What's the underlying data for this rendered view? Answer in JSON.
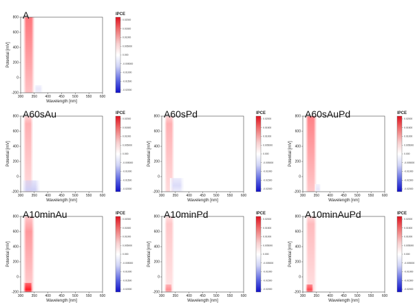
{
  "chart_data": [
    {
      "type": "heatmap",
      "title": "A",
      "xlabel": "Wavelength [nm]",
      "ylabel": "Potential [mV]",
      "xlim": [
        300,
        600
      ],
      "ylim": [
        -200,
        800
      ],
      "xticks": [
        "300",
        "350",
        "400",
        "450",
        "500",
        "550",
        "600"
      ],
      "yticks": [
        "-200",
        "0",
        "200",
        "400",
        "600",
        "800"
      ],
      "colorbar": {
        "title": "IPCE",
        "ticks": [
          "0.02000",
          "0.01500",
          "0.01000",
          "0.005000",
          "0.000",
          "-0.005000",
          "-0.01000",
          "-0.01500",
          "-0.02000"
        ],
        "range": [
          -0.02,
          0.02
        ]
      },
      "features": [
        {
          "label": "positive",
          "x_range": [
            310,
            350
          ],
          "y_range": [
            -200,
            800
          ],
          "peak_y": 800,
          "value": 0.012
        },
        {
          "label": "negative",
          "x_range": [
            350,
            380
          ],
          "y_range": [
            -200,
            -100
          ],
          "peak_y": -150,
          "value": -0.002
        }
      ]
    },
    {
      "type": "heatmap",
      "title": "A60sAu",
      "xlabel": "Wavelength [nm]",
      "ylabel": "Potential [mV]",
      "xlim": [
        300,
        600
      ],
      "ylim": [
        -200,
        800
      ],
      "xticks": [
        "300",
        "350",
        "400",
        "450",
        "500",
        "550",
        "600"
      ],
      "yticks": [
        "-200",
        "0",
        "200",
        "400",
        "600",
        "800"
      ],
      "colorbar": {
        "title": "IPCE",
        "ticks": [
          "0.02000",
          "0.01500",
          "0.01000",
          "0.005000",
          "0.000",
          "-0.005000",
          "-0.01000",
          "-0.01500",
          "-0.02000"
        ],
        "range": [
          -0.02,
          0.02
        ]
      },
      "features": [
        {
          "label": "positive",
          "x_range": [
            310,
            345
          ],
          "y_range": [
            -200,
            800
          ],
          "peak_y": 700,
          "value": 0.007
        },
        {
          "label": "negative",
          "x_range": [
            305,
            370
          ],
          "y_range": [
            -200,
            -50
          ],
          "peak_y": -180,
          "value": -0.004
        }
      ]
    },
    {
      "type": "heatmap",
      "title": "A60sPd",
      "xlabel": "Wavelength [nm]",
      "ylabel": "Potential [mV]",
      "xlim": [
        300,
        600
      ],
      "ylim": [
        -200,
        800
      ],
      "xticks": [
        "300",
        "350",
        "400",
        "450",
        "500",
        "550",
        "600"
      ],
      "yticks": [
        "-200",
        "0",
        "200",
        "400",
        "600",
        "800"
      ],
      "colorbar": {
        "title": "IPCE",
        "ticks": [
          "0.02000",
          "0.01500",
          "0.01000",
          "0.005000",
          "0.000",
          "-0.005000",
          "-0.01000",
          "-0.01500",
          "-0.02000"
        ],
        "range": [
          -0.02,
          0.02
        ]
      },
      "features": [
        {
          "label": "positive",
          "x_range": [
            310,
            345
          ],
          "y_range": [
            -200,
            800
          ],
          "peak_y": 700,
          "value": 0.007
        },
        {
          "label": "negative",
          "x_range": [
            330,
            380
          ],
          "y_range": [
            -200,
            -20
          ],
          "peak_y": -120,
          "value": -0.003
        }
      ]
    },
    {
      "type": "heatmap",
      "title": "A60sAuPd",
      "xlabel": "Wavelength [nm]",
      "ylabel": "Potential [mV]",
      "xlim": [
        300,
        600
      ],
      "ylim": [
        -200,
        800
      ],
      "xticks": [
        "300",
        "350",
        "400",
        "450",
        "500",
        "550",
        "600"
      ],
      "yticks": [
        "-200",
        "0",
        "200",
        "400",
        "600",
        "800"
      ],
      "colorbar": {
        "title": "IPCE",
        "ticks": [
          "0.02000",
          "0.01500",
          "0.01000",
          "0.005000",
          "0.000",
          "-0.005000",
          "-0.01000",
          "-0.01500",
          "-0.02000"
        ],
        "range": [
          -0.02,
          0.02
        ]
      },
      "features": [
        {
          "label": "positive",
          "x_range": [
            310,
            350
          ],
          "y_range": [
            -200,
            800
          ],
          "peak_y": 800,
          "value": 0.011
        },
        {
          "label": "negative",
          "x_range": [
            345,
            365
          ],
          "y_range": [
            -200,
            -100
          ],
          "peak_y": -170,
          "value": -0.002
        }
      ]
    },
    {
      "type": "heatmap",
      "title": "A10minAu",
      "xlabel": "Wavelength [nm]",
      "ylabel": "Potential [mV]",
      "xlim": [
        300,
        600
      ],
      "ylim": [
        -200,
        800
      ],
      "xticks": [
        "300",
        "350",
        "400",
        "450",
        "500",
        "550",
        "600"
      ],
      "yticks": [
        "-200",
        "0",
        "200",
        "400",
        "600",
        "800"
      ],
      "colorbar": {
        "title": "IPCE",
        "ticks": [
          "0.02000",
          "0.01500",
          "0.01000",
          "0.005000",
          "0.000",
          "-0.005000",
          "-0.01000",
          "-0.01500",
          "-0.02000"
        ],
        "range": [
          -0.02,
          0.02
        ]
      },
      "features": [
        {
          "label": "positive",
          "x_range": [
            310,
            350
          ],
          "y_range": [
            -200,
            800
          ],
          "peak_y": 600,
          "value": 0.009
        },
        {
          "label": "positive-strong",
          "x_range": [
            310,
            345
          ],
          "y_range": [
            -200,
            -80
          ],
          "peak_y": -170,
          "value": 0.02
        }
      ]
    },
    {
      "type": "heatmap",
      "title": "A10minPd",
      "xlabel": "Wavelength [nm]",
      "ylabel": "Potential [mV]",
      "xlim": [
        300,
        600
      ],
      "ylim": [
        -200,
        800
      ],
      "xticks": [
        "300",
        "350",
        "400",
        "450",
        "500",
        "550",
        "600"
      ],
      "yticks": [
        "-200",
        "0",
        "200",
        "400",
        "600",
        "800"
      ],
      "colorbar": {
        "title": "IPCE",
        "ticks": [
          "0.02000",
          "0.01500",
          "0.01000",
          "0.005000",
          "0.000",
          "-0.005000",
          "-0.01000",
          "-0.01500",
          "-0.02000"
        ],
        "range": [
          -0.02,
          0.02
        ]
      },
      "features": [
        {
          "label": "positive",
          "x_range": [
            310,
            345
          ],
          "y_range": [
            -200,
            800
          ],
          "peak_y": 700,
          "value": 0.005
        },
        {
          "label": "positive-strong",
          "x_range": [
            310,
            340
          ],
          "y_range": [
            -200,
            -100
          ],
          "peak_y": -170,
          "value": 0.01
        }
      ]
    },
    {
      "type": "heatmap",
      "title": "A10minAuPd",
      "xlabel": "Wavelength [nm]",
      "ylabel": "Potential [mV]",
      "xlim": [
        300,
        600
      ],
      "ylim": [
        -200,
        800
      ],
      "xticks": [
        "300",
        "350",
        "400",
        "450",
        "500",
        "550",
        "600"
      ],
      "yticks": [
        "-200",
        "0",
        "200",
        "400",
        "600",
        "800"
      ],
      "colorbar": {
        "title": "IPCE",
        "ticks": [
          "0.02000",
          "0.01500",
          "0.01000",
          "0.005000",
          "0.000",
          "-0.005000",
          "-0.01000",
          "-0.01500",
          "-0.02000"
        ],
        "range": [
          -0.02,
          0.02
        ]
      },
      "features": [
        {
          "label": "positive",
          "x_range": [
            310,
            350
          ],
          "y_range": [
            -200,
            800
          ],
          "peak_y": 700,
          "value": 0.006
        },
        {
          "label": "positive-strong",
          "x_range": [
            310,
            340
          ],
          "y_range": [
            -200,
            -100
          ],
          "peak_y": -170,
          "value": 0.016
        }
      ]
    }
  ]
}
